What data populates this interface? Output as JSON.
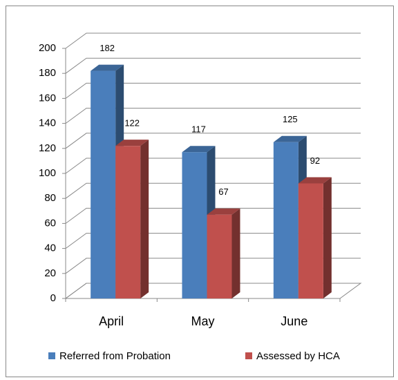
{
  "chart_data": {
    "type": "bar",
    "categories": [
      "April",
      "May",
      "June"
    ],
    "series": [
      {
        "name": "Referred from Probation",
        "color": "#4a7ebb",
        "values": [
          182,
          117,
          125
        ]
      },
      {
        "name": "Assessed by HCA",
        "color": "#c0504d",
        "values": [
          122,
          67,
          92
        ]
      }
    ],
    "ylim": [
      0,
      200
    ],
    "yticks": [
      0,
      20,
      40,
      60,
      80,
      100,
      120,
      140,
      160,
      180,
      200
    ],
    "grid": true,
    "legend": "bottom"
  }
}
